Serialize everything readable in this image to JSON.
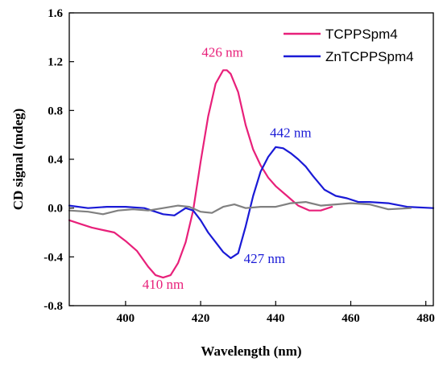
{
  "chart_data": {
    "type": "line",
    "xlabel": "Wavelength (nm)",
    "ylabel": "CD signal (mdeg)",
    "xlim": [
      385,
      482
    ],
    "ylim": [
      -0.8,
      1.6
    ],
    "xticks": [
      400,
      420,
      440,
      460,
      480
    ],
    "yticks": [
      -0.8,
      -0.4,
      0.0,
      0.4,
      0.8,
      1.2,
      1.6
    ],
    "xtick_labels": [
      "400",
      "420",
      "440",
      "460",
      "480"
    ],
    "ytick_labels": [
      "-0.8",
      "-0.4",
      "0.0",
      "0.4",
      "0.8",
      "1.2",
      "1.6"
    ],
    "legend_position": "top-right",
    "grid": false,
    "series": [
      {
        "name": "TCPPSpm4",
        "color": "#e8207a",
        "x": [
          385,
          388,
          391,
          394,
          397,
          400,
          403,
          406,
          408,
          410,
          412,
          414,
          416,
          418,
          420,
          422,
          424,
          426,
          427,
          428,
          430,
          432,
          434,
          436,
          438,
          440,
          443,
          446,
          449,
          452,
          455
        ],
        "y": [
          -0.1,
          -0.13,
          -0.16,
          -0.18,
          -0.2,
          -0.27,
          -0.35,
          -0.48,
          -0.55,
          -0.57,
          -0.55,
          -0.45,
          -0.28,
          -0.02,
          0.38,
          0.75,
          1.02,
          1.13,
          1.13,
          1.1,
          0.95,
          0.68,
          0.48,
          0.35,
          0.25,
          0.18,
          0.1,
          0.02,
          -0.02,
          -0.02,
          0.01
        ]
      },
      {
        "name": "ZnTCPPSpm4",
        "color": "#1a1ad6",
        "x": [
          385,
          390,
          395,
          400,
          405,
          410,
          413,
          416,
          418,
          420,
          422,
          424,
          426,
          428,
          430,
          432,
          434,
          436,
          438,
          440,
          442,
          444,
          446,
          448,
          450,
          453,
          456,
          459,
          462,
          465,
          470,
          475,
          482
        ],
        "y": [
          0.02,
          0.0,
          0.01,
          0.01,
          0.0,
          -0.05,
          -0.06,
          0.0,
          -0.02,
          -0.1,
          -0.2,
          -0.28,
          -0.36,
          -0.41,
          -0.37,
          -0.15,
          0.1,
          0.3,
          0.42,
          0.5,
          0.49,
          0.45,
          0.4,
          0.34,
          0.26,
          0.15,
          0.1,
          0.08,
          0.05,
          0.05,
          0.04,
          0.01,
          0.0
        ]
      },
      {
        "name": "",
        "color": "#808080",
        "x": [
          385,
          390,
          394,
          398,
          402,
          406,
          410,
          414,
          417,
          420,
          423,
          426,
          429,
          432,
          436,
          440,
          444,
          448,
          452,
          456,
          460,
          465,
          470,
          476
        ],
        "y": [
          -0.02,
          -0.03,
          -0.05,
          -0.02,
          -0.01,
          -0.02,
          0.0,
          0.02,
          0.01,
          -0.03,
          -0.04,
          0.01,
          0.03,
          0.0,
          0.01,
          0.01,
          0.04,
          0.05,
          0.02,
          0.03,
          0.04,
          0.03,
          -0.01,
          0.0
        ]
      }
    ],
    "annotations": [
      {
        "text": "426 nm",
        "x": 425.8,
        "y": 1.24,
        "color": "#e8207a"
      },
      {
        "text": "410 nm",
        "x": 410,
        "y": -0.66,
        "color": "#e8207a"
      },
      {
        "text": "442 nm",
        "x": 444,
        "y": 0.58,
        "color": "#1a1ad6"
      },
      {
        "text": "427 nm",
        "x": 437,
        "y": -0.45,
        "color": "#1a1ad6"
      }
    ]
  }
}
